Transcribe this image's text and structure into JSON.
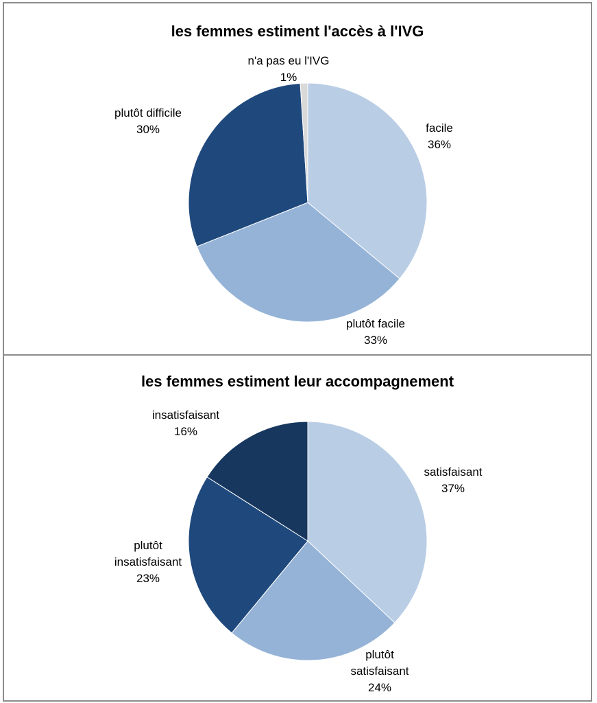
{
  "chart_data": [
    {
      "type": "pie",
      "title": "les femmes estiment l'accès à l'IVG",
      "slices": [
        {
          "label": "facile",
          "value": 36,
          "value_label": "36%",
          "color": "#b9cde5"
        },
        {
          "label": "plutôt facile",
          "value": 33,
          "value_label": "33%",
          "color": "#95b3d7"
        },
        {
          "label": "plutôt difficile",
          "value": 30,
          "value_label": "30%",
          "color": "#1f497d"
        },
        {
          "label": "n'a pas eu l'IVG",
          "value": 1,
          "value_label": "1%",
          "color": "#d9d9d9"
        }
      ],
      "legend": "none"
    },
    {
      "type": "pie",
      "title": "les femmes estiment leur accompagnement",
      "slices": [
        {
          "label": "satisfaisant",
          "value": 37,
          "value_label": "37%",
          "color": "#b9cde5"
        },
        {
          "label": "plutôt satisfaisant",
          "value": 24,
          "value_label": "24%",
          "color": "#95b3d7"
        },
        {
          "label": "plutôt insatisfaisant",
          "value": 23,
          "value_label": "23%",
          "color": "#1f497d"
        },
        {
          "label": "insatisfaisant",
          "value": 16,
          "value_label": "16%",
          "color": "#17375e"
        }
      ],
      "legend": "none"
    }
  ]
}
